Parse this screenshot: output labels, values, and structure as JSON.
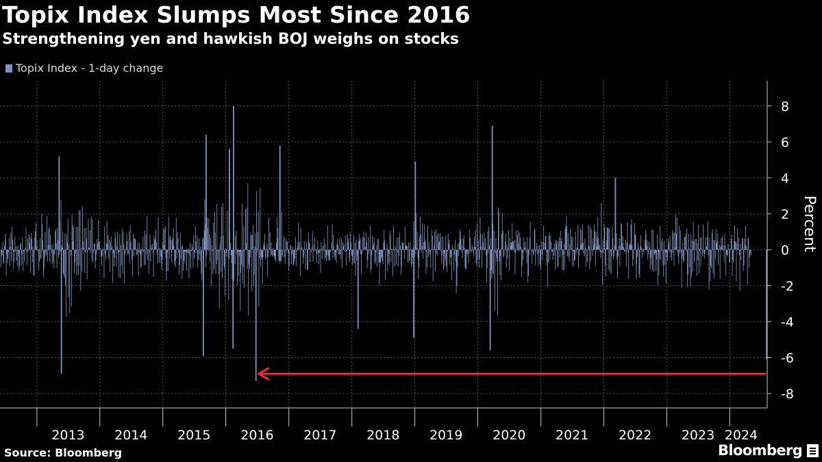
{
  "chart_data": {
    "type": "bar",
    "title": "Topix Index Slumps Most Since 2016",
    "subtitle": "Strengthening yen and hawkish BOJ weighs on stocks",
    "legend": {
      "entries": [
        "Topix Index - 1-day change"
      ],
      "placement": "top-left"
    },
    "series": [
      {
        "name": "Topix Index - 1-day change",
        "color": "#8094bf",
        "notable_values": [
          {
            "date": "2013-05-23",
            "value": -6.9
          },
          {
            "date": "2013-05-10",
            "value": 5.2
          },
          {
            "date": "2015-08-24",
            "value": -5.9
          },
          {
            "date": "2015-09-09",
            "value": 6.4
          },
          {
            "date": "2016-01-22",
            "value": 5.6
          },
          {
            "date": "2016-02-15",
            "value": 8.0
          },
          {
            "date": "2016-02-12",
            "value": -5.5
          },
          {
            "date": "2016-06-24",
            "value": -7.3
          },
          {
            "date": "2016-11-10",
            "value": 5.8
          },
          {
            "date": "2018-02-06",
            "value": -4.4
          },
          {
            "date": "2018-12-26",
            "value": -4.9
          },
          {
            "date": "2019-01-04",
            "value": 4.9
          },
          {
            "date": "2020-03-13",
            "value": -5.6
          },
          {
            "date": "2020-03-25",
            "value": 6.9
          },
          {
            "date": "2022-03-09",
            "value": 4.0
          },
          {
            "date": "2024-08-02",
            "value": -6.1
          }
        ]
      }
    ],
    "x_axis": {
      "type": "date",
      "range": [
        "2012-06-01",
        "2024-08-05"
      ],
      "tick_labels": [
        "2013",
        "2014",
        "2015",
        "2016",
        "2017",
        "2018",
        "2019",
        "2020",
        "2021",
        "2022",
        "2023",
        "2024"
      ],
      "grid": true
    },
    "y_axis": {
      "label": "Percent",
      "position": "right",
      "range": [
        -8.8,
        9.4
      ],
      "ticks": [
        8,
        6,
        4,
        2,
        0,
        -2,
        -4,
        -6,
        -8
      ],
      "tick_labels": [
        "8",
        "6",
        "4",
        "2",
        "0",
        "-2",
        "-4",
        "-6",
        "-8"
      ],
      "grid": true
    },
    "annotation": {
      "type": "arrow",
      "color": "#ee2b3b",
      "from": {
        "date": "2024-07-25",
        "value": -6.9
      },
      "to": {
        "date": "2016-07-10",
        "value": -6.9
      }
    }
  },
  "footer": {
    "source": "Source: Bloomberg",
    "brand": "Bloomberg"
  }
}
